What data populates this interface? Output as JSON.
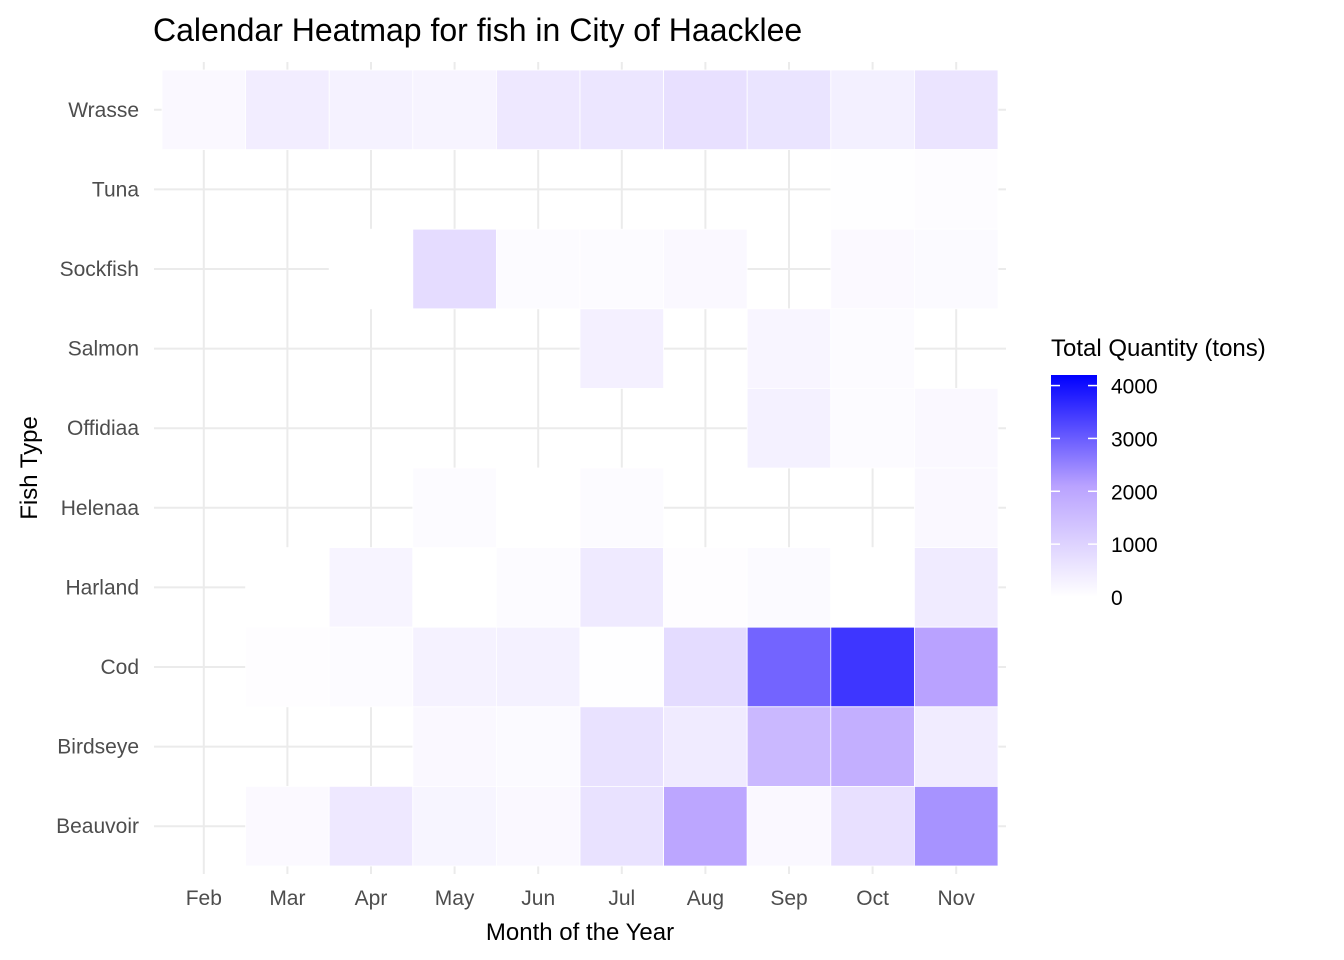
{
  "chart_data": {
    "type": "heatmap",
    "title": "Calendar Heatmap for fish in City of Haacklee",
    "xlabel": "Month of the Year",
    "ylabel": "Fish Type",
    "x_categories": [
      "Feb",
      "Mar",
      "Apr",
      "May",
      "Jun",
      "Jul",
      "Aug",
      "Sep",
      "Oct",
      "Nov"
    ],
    "y_categories": [
      "Beauvoir",
      "Birdseye",
      "Cod",
      "Harland",
      "Helenaa",
      "Offidiaa",
      "Salmon",
      "Sockfish",
      "Tuna",
      "Wrasse"
    ],
    "cells": [
      {
        "y": "Wrasse",
        "x": "Feb",
        "value": 150
      },
      {
        "y": "Wrasse",
        "x": "Mar",
        "value": 400
      },
      {
        "y": "Wrasse",
        "x": "Apr",
        "value": 300
      },
      {
        "y": "Wrasse",
        "x": "May",
        "value": 250
      },
      {
        "y": "Wrasse",
        "x": "Jun",
        "value": 520
      },
      {
        "y": "Wrasse",
        "x": "Jul",
        "value": 560
      },
      {
        "y": "Wrasse",
        "x": "Aug",
        "value": 700
      },
      {
        "y": "Wrasse",
        "x": "Sep",
        "value": 620
      },
      {
        "y": "Wrasse",
        "x": "Oct",
        "value": 350
      },
      {
        "y": "Wrasse",
        "x": "Nov",
        "value": 600
      },
      {
        "y": "Tuna",
        "x": "Oct",
        "value": 20
      },
      {
        "y": "Tuna",
        "x": "Nov",
        "value": 60
      },
      {
        "y": "Sockfish",
        "x": "Apr",
        "value": 5
      },
      {
        "y": "Sockfish",
        "x": "May",
        "value": 780
      },
      {
        "y": "Sockfish",
        "x": "Jun",
        "value": 80
      },
      {
        "y": "Sockfish",
        "x": "Jul",
        "value": 100
      },
      {
        "y": "Sockfish",
        "x": "Aug",
        "value": 150
      },
      {
        "y": "Sockfish",
        "x": "Oct",
        "value": 130
      },
      {
        "y": "Sockfish",
        "x": "Nov",
        "value": 110
      },
      {
        "y": "Salmon",
        "x": "Jul",
        "value": 330
      },
      {
        "y": "Salmon",
        "x": "Sep",
        "value": 220
      },
      {
        "y": "Salmon",
        "x": "Oct",
        "value": 100
      },
      {
        "y": "Offidiaa",
        "x": "Sep",
        "value": 320
      },
      {
        "y": "Offidiaa",
        "x": "Oct",
        "value": 90
      },
      {
        "y": "Offidiaa",
        "x": "Nov",
        "value": 150
      },
      {
        "y": "Helenaa",
        "x": "May",
        "value": 90
      },
      {
        "y": "Helenaa",
        "x": "Jun",
        "value": 10
      },
      {
        "y": "Helenaa",
        "x": "Jul",
        "value": 100
      },
      {
        "y": "Helenaa",
        "x": "Nov",
        "value": 150
      },
      {
        "y": "Harland",
        "x": "Mar",
        "value": 10
      },
      {
        "y": "Harland",
        "x": "Apr",
        "value": 250
      },
      {
        "y": "Harland",
        "x": "May",
        "value": 0
      },
      {
        "y": "Harland",
        "x": "Jun",
        "value": 90
      },
      {
        "y": "Harland",
        "x": "Jul",
        "value": 480
      },
      {
        "y": "Harland",
        "x": "Aug",
        "value": 40
      },
      {
        "y": "Harland",
        "x": "Sep",
        "value": 110
      },
      {
        "y": "Harland",
        "x": "Oct",
        "value": 10
      },
      {
        "y": "Harland",
        "x": "Nov",
        "value": 450
      },
      {
        "y": "Cod",
        "x": "Mar",
        "value": 40
      },
      {
        "y": "Cod",
        "x": "Apr",
        "value": 80
      },
      {
        "y": "Cod",
        "x": "May",
        "value": 300
      },
      {
        "y": "Cod",
        "x": "Jun",
        "value": 320
      },
      {
        "y": "Cod",
        "x": "Jul",
        "value": 20
      },
      {
        "y": "Cod",
        "x": "Aug",
        "value": 800
      },
      {
        "y": "Cod",
        "x": "Sep",
        "value": 2900
      },
      {
        "y": "Cod",
        "x": "Oct",
        "value": 3500
      },
      {
        "y": "Cod",
        "x": "Nov",
        "value": 2100
      },
      {
        "y": "Birdseye",
        "x": "May",
        "value": 150
      },
      {
        "y": "Birdseye",
        "x": "Jun",
        "value": 120
      },
      {
        "y": "Birdseye",
        "x": "Jul",
        "value": 650
      },
      {
        "y": "Birdseye",
        "x": "Aug",
        "value": 450
      },
      {
        "y": "Birdseye",
        "x": "Sep",
        "value": 1600
      },
      {
        "y": "Birdseye",
        "x": "Oct",
        "value": 1800
      },
      {
        "y": "Birdseye",
        "x": "Nov",
        "value": 420
      },
      {
        "y": "Beauvoir",
        "x": "Mar",
        "value": 130
      },
      {
        "y": "Beauvoir",
        "x": "Apr",
        "value": 520
      },
      {
        "y": "Beauvoir",
        "x": "May",
        "value": 230
      },
      {
        "y": "Beauvoir",
        "x": "Jun",
        "value": 160
      },
      {
        "y": "Beauvoir",
        "x": "Jul",
        "value": 650
      },
      {
        "y": "Beauvoir",
        "x": "Aug",
        "value": 2000
      },
      {
        "y": "Beauvoir",
        "x": "Sep",
        "value": 150
      },
      {
        "y": "Beauvoir",
        "x": "Oct",
        "value": 700
      },
      {
        "y": "Beauvoir",
        "x": "Nov",
        "value": 2300
      }
    ],
    "legend": {
      "title": "Total Quantity (tons)",
      "range": [
        0,
        4200
      ],
      "ticks": [
        0,
        1000,
        2000,
        3000,
        4000
      ],
      "color_low": "#ffffff",
      "color_mid": "#b9a2ff",
      "color_high": "#0000ff",
      "placement": "right"
    },
    "grid": true
  }
}
